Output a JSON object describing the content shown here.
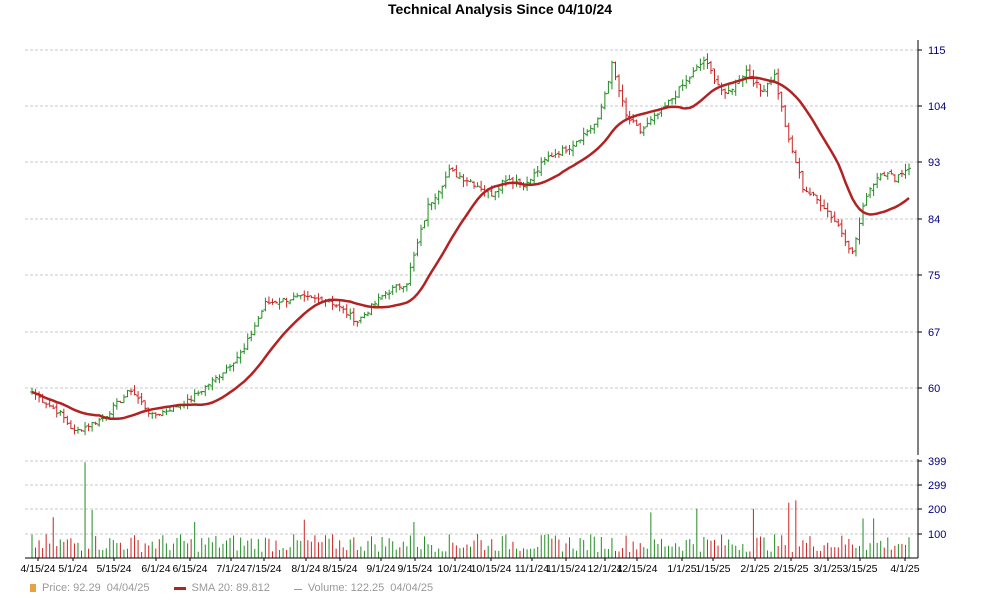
{
  "chart_data": {
    "type": "ohlc",
    "title": "Technical Analysis Since 04/10/24",
    "price_axis": {
      "ticks": [
        60,
        67,
        75,
        84,
        93,
        104,
        115
      ],
      "ylim": [
        52,
        115
      ]
    },
    "volume_axis": {
      "ticks": [
        100,
        200,
        299,
        399
      ],
      "ylim": [
        0,
        399
      ]
    },
    "x_tick_labels": [
      "4/15/24",
      "5/1/24",
      "5/15/24",
      "6/1/24",
      "6/15/24",
      "7/1/24",
      "7/15/24",
      "8/1/24",
      "8/15/24",
      "9/1/24",
      "9/15/24",
      "10/1/24",
      "10/15/24",
      "11/1/24",
      "11/15/24",
      "12/1/24",
      "12/15/24",
      "1/1/25",
      "1/15/25",
      "2/1/25",
      "2/15/25",
      "3/1/25",
      "3/15/25",
      "4/1/25"
    ],
    "price_series": {
      "name": "Price",
      "close_anchors": [
        [
          0,
          59.5
        ],
        [
          8,
          56.8
        ],
        [
          12,
          54.5
        ],
        [
          20,
          56.2
        ],
        [
          28,
          59.8
        ],
        [
          34,
          56.5
        ],
        [
          44,
          58.3
        ],
        [
          52,
          61.2
        ],
        [
          60,
          64.8
        ],
        [
          66,
          71.0
        ],
        [
          74,
          71.8
        ],
        [
          84,
          71.5
        ],
        [
          92,
          68.5
        ],
        [
          100,
          72.5
        ],
        [
          106,
          74.0
        ],
        [
          112,
          86.0
        ],
        [
          118,
          91.5
        ],
        [
          124,
          90.0
        ],
        [
          130,
          88.0
        ],
        [
          134,
          90.5
        ],
        [
          140,
          89.5
        ],
        [
          146,
          94.0
        ],
        [
          152,
          96.0
        ],
        [
          160,
          101.0
        ],
        [
          164,
          112.0
        ],
        [
          168,
          102.0
        ],
        [
          172,
          99.0
        ],
        [
          178,
          103.0
        ],
        [
          184,
          108.0
        ],
        [
          190,
          113.0
        ],
        [
          196,
          106.0
        ],
        [
          202,
          111.0
        ],
        [
          206,
          107.0
        ],
        [
          210,
          110.0
        ],
        [
          214,
          97.0
        ],
        [
          218,
          89.0
        ],
        [
          224,
          86.0
        ],
        [
          228,
          83.0
        ],
        [
          232,
          78.5
        ],
        [
          236,
          88.0
        ],
        [
          240,
          91.5
        ],
        [
          244,
          90.5
        ],
        [
          248,
          92.3
        ]
      ]
    },
    "volume_series": {
      "name": "Volume",
      "spikes": [
        [
          54,
          170
        ],
        [
          85,
          399
        ],
        [
          91,
          200
        ],
        [
          196,
          150
        ],
        [
          303,
          160
        ],
        [
          414,
          150
        ],
        [
          477,
          100
        ],
        [
          651,
          190
        ],
        [
          697,
          205
        ],
        [
          752,
          205
        ],
        [
          789,
          230
        ],
        [
          797,
          240
        ],
        [
          863,
          165
        ],
        [
          875,
          165
        ]
      ]
    },
    "sma_series": {
      "name": "SMA 20",
      "window": 20
    },
    "legend": [
      {
        "key": "price",
        "label": "Price: 92.29",
        "date": "04/04/25",
        "color": "#e8a040"
      },
      {
        "key": "sma",
        "label": "SMA 20: 89.812",
        "date": "",
        "color": "#b22222"
      },
      {
        "key": "volume",
        "label": "Volume: 122.25",
        "date": "04/04/25",
        "color": "#5fb0b0"
      }
    ],
    "up_color": "#228b22",
    "down_color": "#cc2222",
    "sma_color": "#b22222",
    "axis_label_color": "#000080",
    "grid": true
  }
}
